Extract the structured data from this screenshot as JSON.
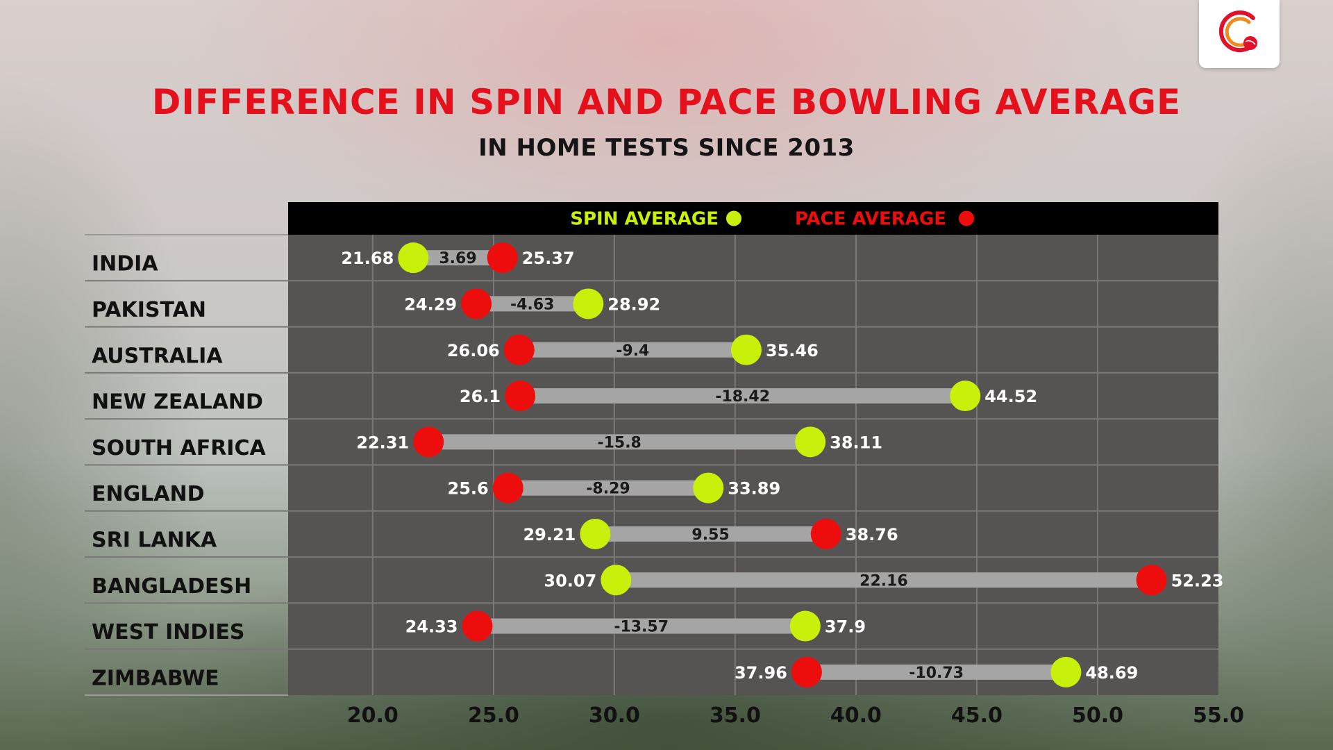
{
  "header": {
    "title": "DIFFERENCE IN SPIN AND PACE BOWLING AVERAGE",
    "subtitle": "IN HOME TESTS SINCE 2013"
  },
  "logo": {
    "icon": "cricket-ball-logo-icon",
    "color": "#e0112b"
  },
  "colors": {
    "spin": "#c8f00a",
    "pace": "#ee0d0d",
    "plot_bg": "#565353",
    "legend_bg": "#000000",
    "connector": "#a5a5a5",
    "title": "#e4101b"
  },
  "chart_data": {
    "type": "dumbbell",
    "title": "DIFFERENCE IN SPIN AND PACE BOWLING AVERAGE",
    "subtitle": "IN HOME TESTS SINCE 2013",
    "xlim": [
      16.5,
      55.0
    ],
    "x_ticks": [
      "20.0",
      "25.0",
      "30.0",
      "35.0",
      "40.0",
      "45.0",
      "50.0",
      "55.0"
    ],
    "x_tick_values": [
      20,
      25,
      30,
      35,
      40,
      45,
      50,
      55
    ],
    "grid": true,
    "legend_position": "top",
    "legend": [
      {
        "key": "spin",
        "label": "SPIN AVERAGE"
      },
      {
        "key": "pace",
        "label": "PACE AVERAGE"
      }
    ],
    "categories": [
      "INDIA",
      "PAKISTAN",
      "AUSTRALIA",
      "NEW ZEALAND",
      "SOUTH AFRICA",
      "ENGLAND",
      "SRI LANKA",
      "BANGLADESH",
      "WEST INDIES",
      "ZIMBABWE"
    ],
    "spin": [
      21.68,
      28.92,
      35.46,
      44.52,
      38.11,
      33.89,
      29.21,
      30.07,
      37.9,
      48.69
    ],
    "pace": [
      25.37,
      24.29,
      26.06,
      26.1,
      22.31,
      25.6,
      38.76,
      52.23,
      24.33,
      37.96
    ],
    "spin_labels": [
      "21.68",
      "28.92",
      "35.46",
      "44.52",
      "38.11",
      "33.89",
      "29.21",
      "30.07",
      "37.9",
      "48.69"
    ],
    "pace_labels": [
      "25.37",
      "24.29",
      "26.06",
      "26.1",
      "22.31",
      "25.6",
      "38.76",
      "52.23",
      "24.33",
      "37.96"
    ],
    "differences": [
      "3.69",
      "-4.63",
      "-9.4",
      "-18.42",
      "-15.8",
      "-8.29",
      "9.55",
      "22.16",
      "-13.57",
      "-10.73"
    ]
  }
}
